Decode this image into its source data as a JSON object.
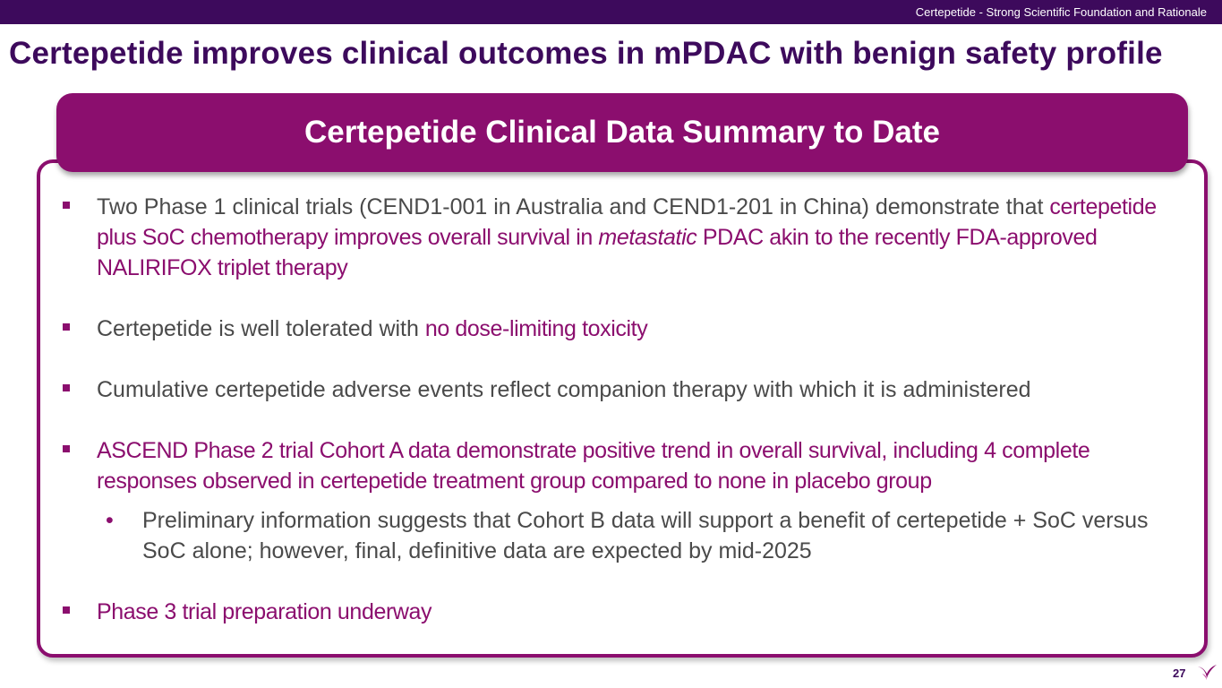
{
  "header": {
    "tagline": "Certepetide - Strong Scientific Foundation and Rationale"
  },
  "title": "Certepetide improves clinical outcomes in mPDAC with benign safety profile",
  "banner": "Certepetide Clinical Data Summary to Date",
  "bullets": {
    "b1_plain": "Two Phase 1 clinical trials (CEND1-001 in Australia and CEND1-201 in China) demonstrate that ",
    "b1_hl_a": "certepetide plus SoC chemotherapy improves overall survival in ",
    "b1_hl_italic": "metastatic",
    "b1_hl_b": " PDAC akin to the recently FDA-approved NALIRIFOX triplet therapy",
    "b2_plain": "Certepetide is well tolerated with ",
    "b2_hl": "no dose-limiting toxicity",
    "b3_plain": "Cumulative certepetide adverse events reflect companion therapy with which it is administered",
    "b4_hl": "ASCEND Phase 2 trial Cohort A data demonstrate positive trend in overall survival, including 4 complete responses observed in certepetide treatment group compared to none in placebo group",
    "sub1": "Preliminary information suggests that Cohort B data will support a benefit of certepetide + SoC versus SoC alone; however, final, definitive data are expected by mid-2025",
    "b5_hl": "Phase 3 trial preparation underway"
  },
  "sub_bullet_glyph": "•",
  "page_number": "27",
  "colors": {
    "brand_dark": "#3d0a5c",
    "brand_magenta": "#8b0e6e",
    "body_text": "#4a4a4a"
  }
}
